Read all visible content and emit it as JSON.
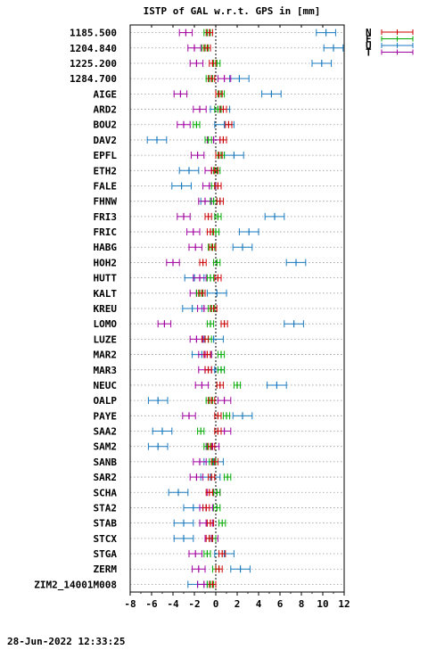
{
  "chart_data": {
    "type": "errorbar",
    "title": "ISTP of GAL w.r.t. GPS in [mm]",
    "timestamp": "28-Jun-2022 12:33:25",
    "xlim": [
      -8,
      12
    ],
    "xticks": [
      -8,
      -6,
      -4,
      -2,
      0,
      2,
      4,
      6,
      8,
      10,
      12
    ],
    "grid": "horizontal-dotted",
    "zero_line": "dotted",
    "legend_position": "top-right",
    "series": [
      {
        "name": "N",
        "color": "#cc0000"
      },
      {
        "name": "E",
        "color": "#00aa00"
      },
      {
        "name": "U",
        "color": "#1a7abf"
      },
      {
        "name": "T",
        "color": "#a000a0"
      }
    ],
    "categories": [
      "1185.500",
      "1204.840",
      "1225.200",
      "1284.700",
      "AIGE",
      "ARD2",
      "BOU2",
      "DAV2",
      "EPFL",
      "ETH2",
      "FALE",
      "FHNW",
      "FRI3",
      "FRIC",
      "HABG",
      "HOH2",
      "HUTT",
      "KALT",
      "KREU",
      "LOMO",
      "LUZE",
      "MAR2",
      "MAR3",
      "NEUC",
      "OALP",
      "PAYE",
      "SAA2",
      "SAM2",
      "SANB",
      "SAR2",
      "SCHA",
      "STA2",
      "STAB",
      "STCX",
      "STGA",
      "ZERM",
      "ZIM2_14001M008"
    ],
    "values": [
      {
        "N": -0.6,
        "E": -0.8,
        "U": 10.3,
        "T": -2.8
      },
      {
        "N": -0.8,
        "E": -1.0,
        "U": 11.0,
        "T": -2.0
      },
      {
        "N": -0.3,
        "E": 0.1,
        "U": 9.9,
        "T": -1.8
      },
      {
        "N": -0.4,
        "E": -0.6,
        "U": 2.2,
        "T": 0.8
      },
      {
        "N": 0.3,
        "E": 0.5,
        "U": 5.2,
        "T": -3.3
      },
      {
        "N": 0.7,
        "E": 0.2,
        "U": 0.4,
        "T": -1.5
      },
      {
        "N": 1.2,
        "E": -1.8,
        "U": 0.8,
        "T": -3.0
      },
      {
        "N": 0.7,
        "E": -0.7,
        "U": -5.5,
        "T": -0.2
      },
      {
        "N": 0.3,
        "E": 0.5,
        "U": 1.7,
        "T": -1.7
      },
      {
        "N": -0.1,
        "E": 0.1,
        "U": -2.5,
        "T": -0.4
      },
      {
        "N": 0.2,
        "E": -0.1,
        "U": -3.2,
        "T": -0.6
      },
      {
        "N": 0.4,
        "E": -0.2,
        "U": -0.5,
        "T": -1.0
      },
      {
        "N": -0.7,
        "E": 0.2,
        "U": 5.5,
        "T": -3.0
      },
      {
        "N": -0.5,
        "E": 0.0,
        "U": 3.1,
        "T": -2.1
      },
      {
        "N": -0.3,
        "E": -0.4,
        "U": 2.5,
        "T": -1.9
      },
      {
        "N": -1.2,
        "E": 0.1,
        "U": 7.5,
        "T": -4.0
      },
      {
        "N": 0.2,
        "E": -0.5,
        "U": -2.0,
        "T": -1.5
      },
      {
        "N": -1.3,
        "E": -1.5,
        "U": 0.1,
        "T": -1.8
      },
      {
        "N": -0.2,
        "E": -0.4,
        "U": -2.2,
        "T": -1.1
      },
      {
        "N": 0.8,
        "E": -0.5,
        "U": 7.3,
        "T": -4.8
      },
      {
        "N": -1.0,
        "E": -0.7,
        "U": -0.2,
        "T": -1.8
      },
      {
        "N": -0.8,
        "E": 0.5,
        "U": -1.3,
        "T": -1.0
      },
      {
        "N": -0.7,
        "E": 0.5,
        "U": -0.1,
        "T": -1.0
      },
      {
        "N": 0.4,
        "E": 2.0,
        "U": 5.7,
        "T": -1.3
      },
      {
        "N": -0.4,
        "E": -0.6,
        "U": -5.4,
        "T": 0.8
      },
      {
        "N": 0.2,
        "E": 1.0,
        "U": 2.5,
        "T": -2.5
      },
      {
        "N": 0.2,
        "E": -1.4,
        "U": -5.0,
        "T": 0.8
      },
      {
        "N": -0.4,
        "E": -0.8,
        "U": -5.4,
        "T": -0.3
      },
      {
        "N": -0.1,
        "E": -0.3,
        "U": -0.2,
        "T": -1.5
      },
      {
        "N": -0.4,
        "E": 1.1,
        "U": -0.5,
        "T": -1.8
      },
      {
        "N": -0.6,
        "E": 0.1,
        "U": -3.5,
        "T": -0.2
      },
      {
        "N": -0.9,
        "E": 0.1,
        "U": -2.1,
        "T": -0.9
      },
      {
        "N": -0.5,
        "E": 0.6,
        "U": -3.0,
        "T": -0.9
      },
      {
        "N": -0.6,
        "E": -0.3,
        "U": -3.0,
        "T": -0.4
      },
      {
        "N": 0.6,
        "E": -0.8,
        "U": 0.8,
        "T": -1.9
      },
      {
        "N": 0.3,
        "E": 0.0,
        "U": 2.3,
        "T": -1.6
      },
      {
        "N": -0.3,
        "E": -0.5,
        "U": -1.7,
        "T": -1.1
      }
    ],
    "error_halfwidth": {
      "N": 0.3,
      "E": 0.3,
      "U": 0.9,
      "T": 0.6
    }
  }
}
